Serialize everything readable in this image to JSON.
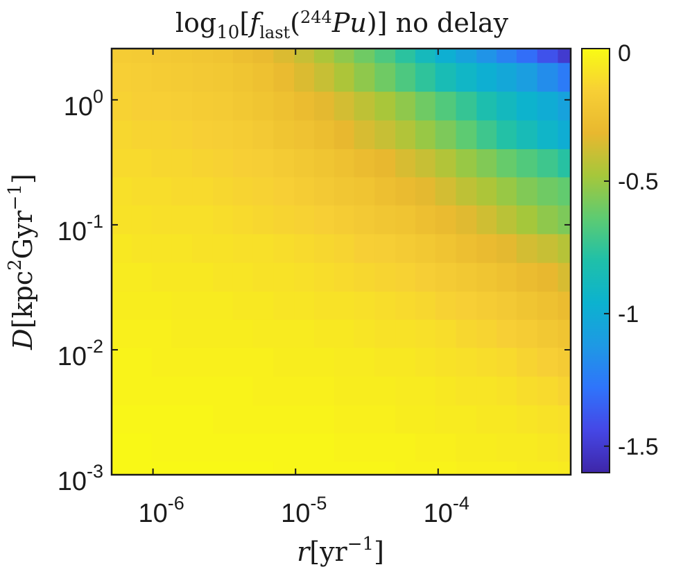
{
  "chart_data": {
    "type": "heatmap",
    "title": {
      "func": "log",
      "func_sub": "10",
      "open": "[",
      "f": "f",
      "f_sub": "last",
      "lparen": "(",
      "isotope_mass": "244",
      "isotope": "Pu",
      "close": ")]",
      "suffix": " no delay"
    },
    "xlabel": {
      "var": "r",
      "unit": "yr",
      "exp": "−1"
    },
    "ylabel": {
      "var": "D",
      "unit1": "kpc",
      "exp1": "2",
      "unit2": "Gyr",
      "exp2": "−1"
    },
    "xscale": "log",
    "yscale": "log",
    "x_ticks": [
      {
        "base": "10",
        "exp": "-6"
      },
      {
        "base": "10",
        "exp": "-5"
      },
      {
        "base": "10",
        "exp": "-4"
      }
    ],
    "y_ticks": [
      {
        "base": "10",
        "exp": "0"
      },
      {
        "base": "10",
        "exp": "-1"
      },
      {
        "base": "10",
        "exp": "-2"
      },
      {
        "base": "10",
        "exp": "-3"
      }
    ],
    "x_log_range": [
      -6.29,
      -3.07
    ],
    "y_log_range": [
      -3.0,
      0.41
    ],
    "x_log_centers": [
      -6.22,
      -6.08,
      -5.94,
      -5.8,
      -5.65,
      -5.51,
      -5.37,
      -5.23,
      -5.08,
      -4.94,
      -4.8,
      -4.66,
      -4.52,
      -4.37,
      -4.23,
      -4.09,
      -3.95,
      -3.8,
      -3.66,
      -3.52,
      -3.38,
      -3.23,
      -3.09
    ],
    "y_log_centers": [
      0.41,
      0.18,
      -0.05,
      -0.28,
      -0.51,
      -0.73,
      -0.96,
      -1.19,
      -1.42,
      -1.65,
      -1.87,
      -2.1,
      -2.33,
      -2.56,
      -2.78,
      -3.01
    ],
    "values": [
      [
        -0.18,
        -0.19,
        -0.2,
        -0.21,
        -0.22,
        -0.24,
        -0.27,
        -0.3,
        -0.35,
        -0.4,
        -0.46,
        -0.53,
        -0.6,
        -0.68,
        -0.77,
        -0.88,
        -0.98,
        -1.06,
        -1.14,
        -1.22,
        -1.3,
        -1.4,
        -1.5
      ],
      [
        -0.16,
        -0.17,
        -0.18,
        -0.19,
        -0.2,
        -0.21,
        -0.23,
        -0.26,
        -0.3,
        -0.35,
        -0.4,
        -0.46,
        -0.53,
        -0.6,
        -0.68,
        -0.76,
        -0.85,
        -0.92,
        -0.98,
        -1.03,
        -1.09,
        -1.17,
        -1.25
      ],
      [
        -0.15,
        -0.16,
        -0.16,
        -0.17,
        -0.18,
        -0.19,
        -0.21,
        -0.23,
        -0.26,
        -0.29,
        -0.33,
        -0.37,
        -0.42,
        -0.47,
        -0.53,
        -0.6,
        -0.67,
        -0.74,
        -0.82,
        -0.89,
        -0.95,
        -1.0,
        -1.06
      ],
      [
        -0.13,
        -0.14,
        -0.14,
        -0.15,
        -0.16,
        -0.17,
        -0.18,
        -0.2,
        -0.23,
        -0.25,
        -0.28,
        -0.32,
        -0.36,
        -0.4,
        -0.45,
        -0.51,
        -0.57,
        -0.64,
        -0.72,
        -0.79,
        -0.86,
        -0.93,
        -0.99
      ],
      [
        -0.12,
        -0.12,
        -0.13,
        -0.13,
        -0.14,
        -0.15,
        -0.16,
        -0.17,
        -0.19,
        -0.21,
        -0.23,
        -0.26,
        -0.29,
        -0.32,
        -0.36,
        -0.4,
        -0.45,
        -0.51,
        -0.56,
        -0.62,
        -0.67,
        -0.72,
        -0.78
      ],
      [
        -0.1,
        -0.11,
        -0.11,
        -0.12,
        -0.12,
        -0.13,
        -0.14,
        -0.15,
        -0.16,
        -0.18,
        -0.2,
        -0.22,
        -0.24,
        -0.27,
        -0.3,
        -0.33,
        -0.37,
        -0.42,
        -0.46,
        -0.51,
        -0.56,
        -0.6,
        -0.63
      ],
      [
        -0.09,
        -0.09,
        -0.1,
        -0.1,
        -0.1,
        -0.11,
        -0.12,
        -0.13,
        -0.14,
        -0.15,
        -0.16,
        -0.18,
        -0.2,
        -0.22,
        -0.24,
        -0.27,
        -0.3,
        -0.34,
        -0.38,
        -0.43,
        -0.48,
        -0.53,
        -0.57
      ],
      [
        -0.07,
        -0.08,
        -0.08,
        -0.08,
        -0.09,
        -0.09,
        -0.1,
        -0.1,
        -0.11,
        -0.12,
        -0.13,
        -0.14,
        -0.16,
        -0.17,
        -0.19,
        -0.21,
        -0.24,
        -0.27,
        -0.3,
        -0.33,
        -0.37,
        -0.4,
        -0.44
      ],
      [
        -0.06,
        -0.06,
        -0.07,
        -0.07,
        -0.07,
        -0.08,
        -0.08,
        -0.09,
        -0.09,
        -0.1,
        -0.11,
        -0.12,
        -0.13,
        -0.14,
        -0.15,
        -0.17,
        -0.19,
        -0.21,
        -0.23,
        -0.26,
        -0.29,
        -0.32,
        -0.36
      ],
      [
        -0.05,
        -0.05,
        -0.05,
        -0.06,
        -0.06,
        -0.06,
        -0.07,
        -0.07,
        -0.08,
        -0.08,
        -0.09,
        -0.09,
        -0.1,
        -0.11,
        -0.12,
        -0.13,
        -0.15,
        -0.16,
        -0.18,
        -0.2,
        -0.23,
        -0.26,
        -0.29
      ],
      [
        -0.04,
        -0.04,
        -0.04,
        -0.05,
        -0.05,
        -0.05,
        -0.05,
        -0.06,
        -0.06,
        -0.06,
        -0.07,
        -0.07,
        -0.08,
        -0.09,
        -0.09,
        -0.1,
        -0.11,
        -0.13,
        -0.14,
        -0.16,
        -0.18,
        -0.21,
        -0.24
      ],
      [
        -0.03,
        -0.03,
        -0.04,
        -0.04,
        -0.04,
        -0.04,
        -0.04,
        -0.04,
        -0.05,
        -0.05,
        -0.05,
        -0.06,
        -0.06,
        -0.07,
        -0.07,
        -0.08,
        -0.09,
        -0.1,
        -0.11,
        -0.12,
        -0.14,
        -0.16,
        -0.19
      ],
      [
        -0.03,
        -0.03,
        -0.03,
        -0.03,
        -0.03,
        -0.03,
        -0.03,
        -0.04,
        -0.04,
        -0.04,
        -0.04,
        -0.05,
        -0.05,
        -0.05,
        -0.06,
        -0.06,
        -0.07,
        -0.08,
        -0.08,
        -0.09,
        -0.11,
        -0.12,
        -0.14
      ],
      [
        -0.02,
        -0.02,
        -0.02,
        -0.02,
        -0.02,
        -0.03,
        -0.03,
        -0.03,
        -0.03,
        -0.03,
        -0.03,
        -0.04,
        -0.04,
        -0.04,
        -0.05,
        -0.05,
        -0.06,
        -0.06,
        -0.07,
        -0.07,
        -0.08,
        -0.09,
        -0.1
      ],
      [
        -0.01,
        -0.01,
        -0.02,
        -0.02,
        -0.02,
        -0.02,
        -0.02,
        -0.02,
        -0.02,
        -0.02,
        -0.02,
        -0.03,
        -0.03,
        -0.03,
        -0.03,
        -0.04,
        -0.04,
        -0.05,
        -0.05,
        -0.06,
        -0.06,
        -0.07,
        -0.08
      ],
      [
        -0.01,
        -0.01,
        -0.01,
        -0.01,
        -0.01,
        -0.01,
        -0.01,
        -0.01,
        -0.02,
        -0.02,
        -0.02,
        -0.02,
        -0.02,
        -0.02,
        -0.03,
        -0.03,
        -0.03,
        -0.04,
        -0.04,
        -0.04,
        -0.05,
        -0.05,
        -0.06
      ]
    ],
    "colorbar": {
      "colormap": "parula",
      "range": [
        -1.6,
        0
      ],
      "ticks": [
        "0",
        "-0.5",
        "-1",
        "-1.5"
      ],
      "tick_values": [
        0,
        -0.5,
        -1,
        -1.5
      ]
    },
    "grid": false,
    "colors": {
      "frame": "#1a1a1a",
      "text": "#1a1a1a",
      "background": "#ffffff"
    }
  }
}
